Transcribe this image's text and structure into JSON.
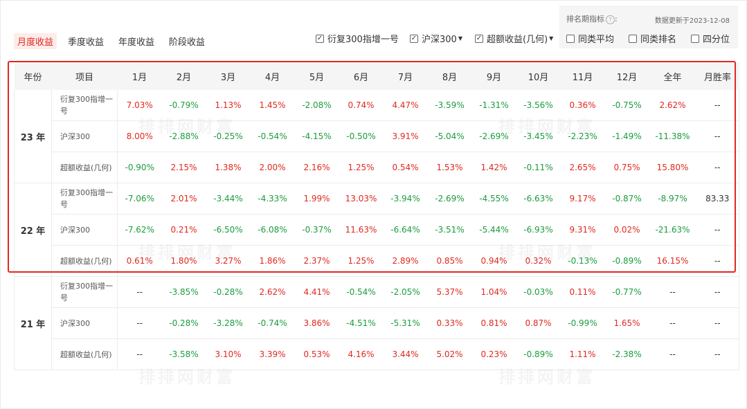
{
  "tabs": [
    {
      "label": "月度收益",
      "active": true
    },
    {
      "label": "季度收益",
      "active": false
    },
    {
      "label": "年度收益",
      "active": false
    },
    {
      "label": "阶段收益",
      "active": false
    }
  ],
  "ranking": {
    "label": "排名期指标",
    "help_icon": "?",
    "colon": ":",
    "updated": "数据更新于2023-12-08",
    "options": [
      {
        "label": "同类平均",
        "checked": false
      },
      {
        "label": "同类排名",
        "checked": false
      },
      {
        "label": "四分位",
        "checked": false
      }
    ]
  },
  "series_options": [
    {
      "label": "衍复300指增一号",
      "checked": true,
      "has_dropdown": false
    },
    {
      "label": "沪深300",
      "checked": true,
      "has_dropdown": true
    },
    {
      "label": "超额收益(几何)",
      "checked": true,
      "has_dropdown": true
    }
  ],
  "watermark": "排排网财富",
  "colors": {
    "positive": "#e0281e",
    "negative": "#1a9c3c",
    "highlight": "#e0281e"
  },
  "table": {
    "headers": [
      "年份",
      "项目",
      "1月",
      "2月",
      "3月",
      "4月",
      "5月",
      "6月",
      "7月",
      "8月",
      "9月",
      "10月",
      "11月",
      "12月",
      "全年",
      "月胜率"
    ],
    "groups": [
      {
        "year": "23 年",
        "rows": [
          {
            "name": "衍复300指增一号",
            "values": [
              "7.03%",
              "-0.79%",
              "1.13%",
              "1.45%",
              "-2.08%",
              "0.74%",
              "4.47%",
              "-3.59%",
              "-1.31%",
              "-3.56%",
              "0.36%",
              "-0.75%",
              "2.62%",
              "--"
            ]
          },
          {
            "name": "沪深300",
            "values": [
              "8.00%",
              "-2.88%",
              "-0.25%",
              "-0.54%",
              "-4.15%",
              "-0.50%",
              "3.91%",
              "-5.04%",
              "-2.69%",
              "-3.45%",
              "-2.23%",
              "-1.49%",
              "-11.38%",
              "--"
            ]
          },
          {
            "name": "超额收益(几何)",
            "values": [
              "-0.90%",
              "2.15%",
              "1.38%",
              "2.00%",
              "2.16%",
              "1.25%",
              "0.54%",
              "1.53%",
              "1.42%",
              "-0.11%",
              "2.65%",
              "0.75%",
              "15.80%",
              "--"
            ]
          }
        ]
      },
      {
        "year": "22 年",
        "rows": [
          {
            "name": "衍复300指增一号",
            "values": [
              "-7.06%",
              "2.01%",
              "-3.44%",
              "-4.33%",
              "1.99%",
              "13.03%",
              "-3.94%",
              "-2.69%",
              "-4.55%",
              "-6.63%",
              "9.17%",
              "-0.87%",
              "-8.97%",
              "83.33"
            ]
          },
          {
            "name": "沪深300",
            "values": [
              "-7.62%",
              "0.21%",
              "-6.50%",
              "-6.08%",
              "-0.37%",
              "11.63%",
              "-6.64%",
              "-3.51%",
              "-5.44%",
              "-6.93%",
              "9.31%",
              "0.02%",
              "-21.63%",
              "--"
            ]
          },
          {
            "name": "超额收益(几何)",
            "values": [
              "0.61%",
              "1.80%",
              "3.27%",
              "1.86%",
              "2.37%",
              "1.25%",
              "2.89%",
              "0.85%",
              "0.94%",
              "0.32%",
              "-0.13%",
              "-0.89%",
              "16.15%",
              "--"
            ]
          }
        ]
      },
      {
        "year": "21 年",
        "rows": [
          {
            "name": "衍复300指增一号",
            "values": [
              "--",
              "-3.85%",
              "-0.28%",
              "2.62%",
              "4.41%",
              "-0.54%",
              "-2.05%",
              "5.37%",
              "1.04%",
              "-0.03%",
              "0.11%",
              "-0.77%",
              "--",
              "--"
            ]
          },
          {
            "name": "沪深300",
            "values": [
              "--",
              "-0.28%",
              "-3.28%",
              "-0.74%",
              "3.86%",
              "-4.51%",
              "-5.31%",
              "0.33%",
              "0.81%",
              "0.87%",
              "-0.99%",
              "1.65%",
              "--",
              "--"
            ]
          },
          {
            "name": "超额收益(几何)",
            "values": [
              "--",
              "-3.58%",
              "3.10%",
              "3.39%",
              "0.53%",
              "4.16%",
              "3.44%",
              "5.02%",
              "0.23%",
              "-0.89%",
              "1.11%",
              "-2.38%",
              "--",
              "--"
            ]
          }
        ]
      }
    ]
  }
}
